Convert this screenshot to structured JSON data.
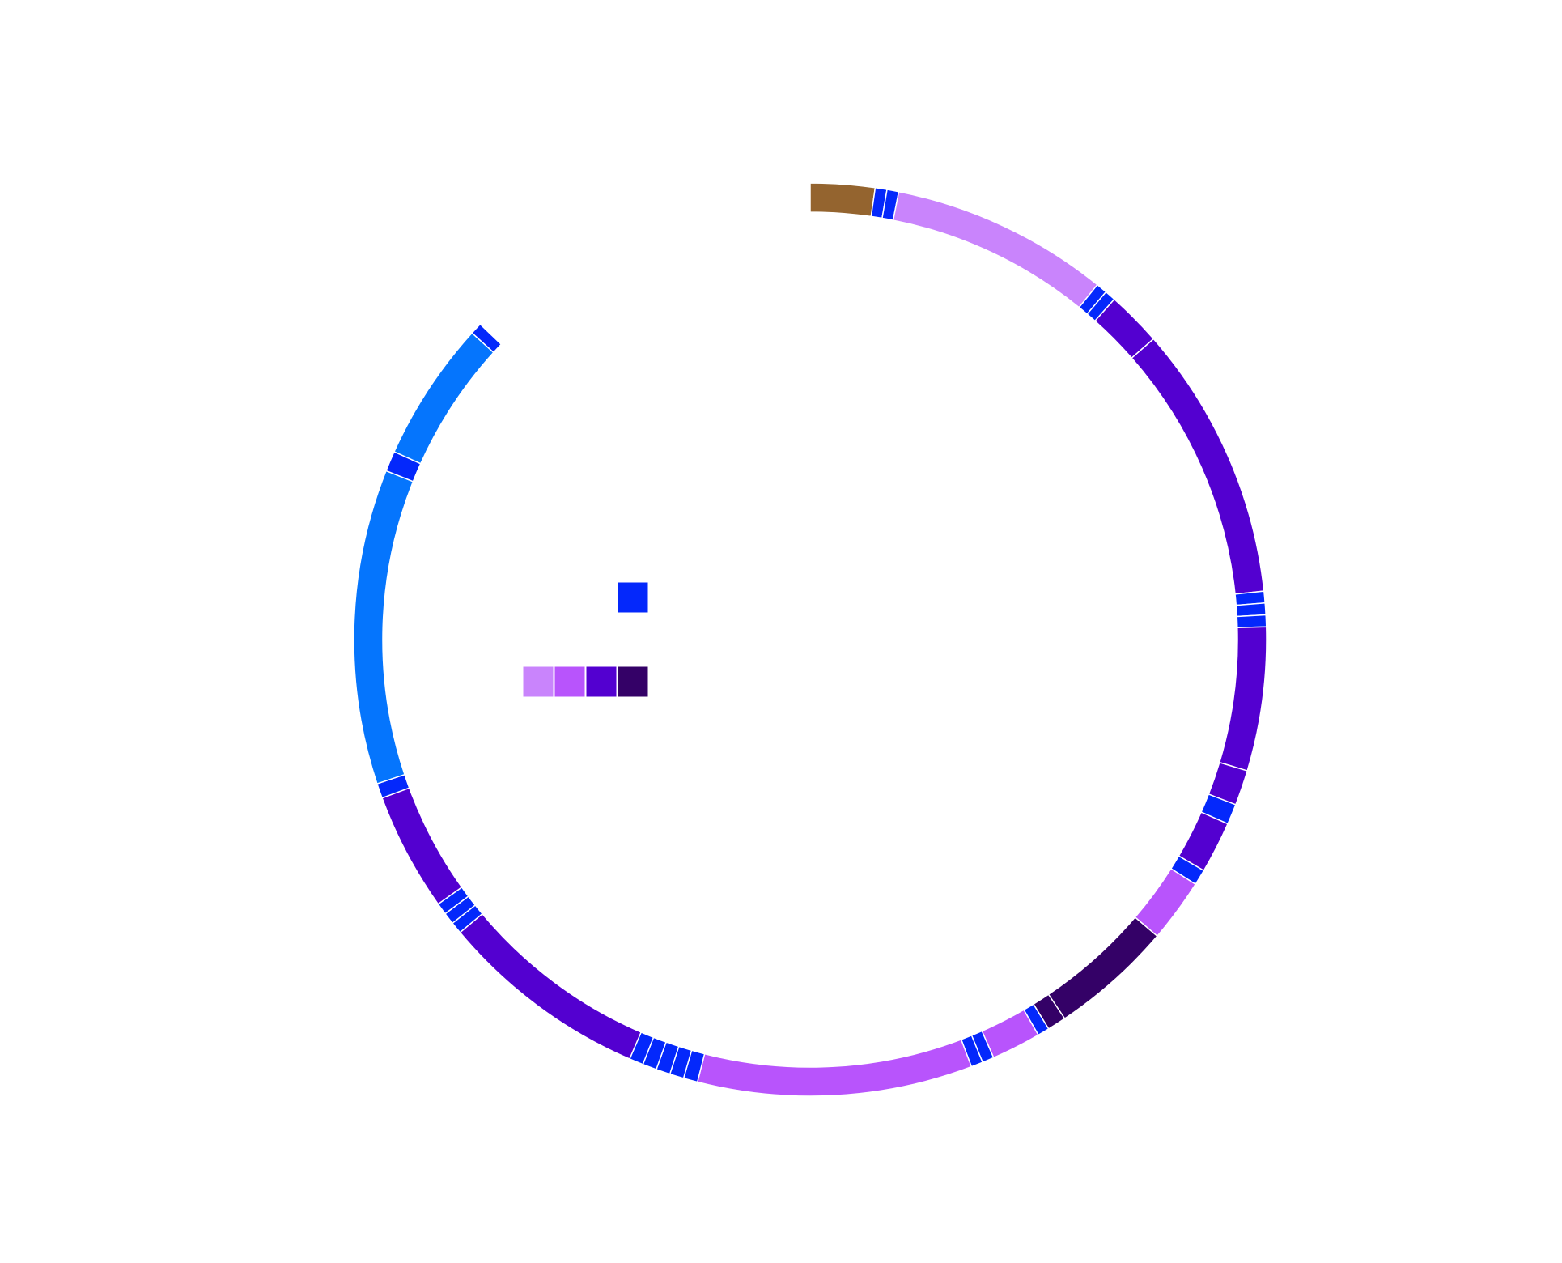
{
  "diagram": {
    "type": "ring",
    "ring": {
      "start_angle_deg": 0,
      "segments": [
        {
          "span": 8.2,
          "color": "#94642f"
        },
        {
          "span": 1.5,
          "color": "#0428fb"
        },
        {
          "span": 1.5,
          "color": "#0428fb"
        },
        {
          "span": 27.8,
          "color": "#c984fc"
        },
        {
          "span": 1.4,
          "color": "#0428fb"
        },
        {
          "span": 1.4,
          "color": "#0428fb"
        },
        {
          "span": 7.0,
          "color": "#5300d0"
        },
        {
          "span": 35.1,
          "color": "#5300d0"
        },
        {
          "span": 1.5,
          "color": "#0428fb"
        },
        {
          "span": 1.5,
          "color": "#0428fb"
        },
        {
          "span": 1.5,
          "color": "#0428fb"
        },
        {
          "span": 18.3,
          "color": "#5300d0"
        },
        {
          "span": 4.5,
          "color": "#5300d0"
        },
        {
          "span": 2.6,
          "color": "#0428fb"
        },
        {
          "span": 6.6,
          "color": "#5300d0"
        },
        {
          "span": 2.0,
          "color": "#0428fb"
        },
        {
          "span": 8.1,
          "color": "#b854fc"
        },
        {
          "span": 15.6,
          "color": "#340167"
        },
        {
          "span": 2.4,
          "color": "#340167"
        },
        {
          "span": 1.5,
          "color": "#0428fb"
        },
        {
          "span": 6.3,
          "color": "#b854fc"
        },
        {
          "span": 1.5,
          "color": "#0428fb"
        },
        {
          "span": 1.5,
          "color": "#0428fb"
        },
        {
          "span": 35.0,
          "color": "#b854fc"
        },
        {
          "span": 1.8,
          "color": "#0428fb"
        },
        {
          "span": 1.8,
          "color": "#0428fb"
        },
        {
          "span": 1.8,
          "color": "#0428fb"
        },
        {
          "span": 1.8,
          "color": "#0428fb"
        },
        {
          "span": 1.8,
          "color": "#0428fb"
        },
        {
          "span": 26.8,
          "color": "#5300d0"
        },
        {
          "span": 1.5,
          "color": "#0428fb"
        },
        {
          "span": 1.5,
          "color": "#0428fb"
        },
        {
          "span": 1.5,
          "color": "#0428fb"
        },
        {
          "span": 15.1,
          "color": "#5300d0"
        },
        {
          "span": 1.9,
          "color": "#0428fb"
        },
        {
          "span": 40.1,
          "color": "#0575fd"
        },
        {
          "span": 2.6,
          "color": "#0428fb"
        },
        {
          "span": 17.9,
          "color": "#0575fd"
        },
        {
          "span": 1.5,
          "color": "#0428fb"
        }
      ]
    },
    "legend": {
      "single": {
        "color": "#0428fb"
      },
      "gradient": [
        "#c984fc",
        "#b854fc",
        "#5300d0",
        "#340167"
      ]
    }
  }
}
